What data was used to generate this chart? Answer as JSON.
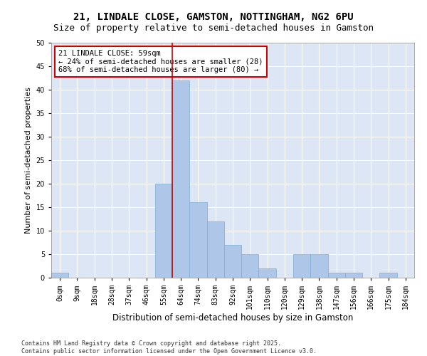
{
  "title1": "21, LINDALE CLOSE, GAMSTON, NOTTINGHAM, NG2 6PU",
  "title2": "Size of property relative to semi-detached houses in Gamston",
  "xlabel": "Distribution of semi-detached houses by size in Gamston",
  "ylabel": "Number of semi-detached properties",
  "bins": [
    "0sqm",
    "9sqm",
    "18sqm",
    "28sqm",
    "37sqm",
    "46sqm",
    "55sqm",
    "64sqm",
    "74sqm",
    "83sqm",
    "92sqm",
    "101sqm",
    "110sqm",
    "120sqm",
    "129sqm",
    "138sqm",
    "147sqm",
    "156sqm",
    "166sqm",
    "175sqm",
    "184sqm"
  ],
  "values": [
    1,
    0,
    0,
    0,
    0,
    0,
    20,
    42,
    16,
    12,
    7,
    5,
    2,
    0,
    5,
    5,
    1,
    1,
    0,
    1,
    0
  ],
  "bar_color": "#aec6e8",
  "bar_edge_color": "#7aadd4",
  "vline_color": "#cc0000",
  "annotation_text": "21 LINDALE CLOSE: 59sqm\n← 24% of semi-detached houses are smaller (28)\n68% of semi-detached houses are larger (80) →",
  "annotation_box_color": "#ffffff",
  "annotation_box_edge_color": "#cc0000",
  "footer1": "Contains HM Land Registry data © Crown copyright and database right 2025.",
  "footer2": "Contains public sector information licensed under the Open Government Licence v3.0.",
  "ylim": [
    0,
    50
  ],
  "yticks": [
    0,
    5,
    10,
    15,
    20,
    25,
    30,
    35,
    40,
    45,
    50
  ],
  "bg_color": "#dce6f5",
  "fig_bg_color": "#ffffff",
  "title1_fontsize": 10,
  "title2_fontsize": 9,
  "tick_fontsize": 7,
  "ylabel_fontsize": 8,
  "xlabel_fontsize": 8.5,
  "footer_fontsize": 6,
  "annotation_fontsize": 7.5,
  "property_bin_index": 6
}
